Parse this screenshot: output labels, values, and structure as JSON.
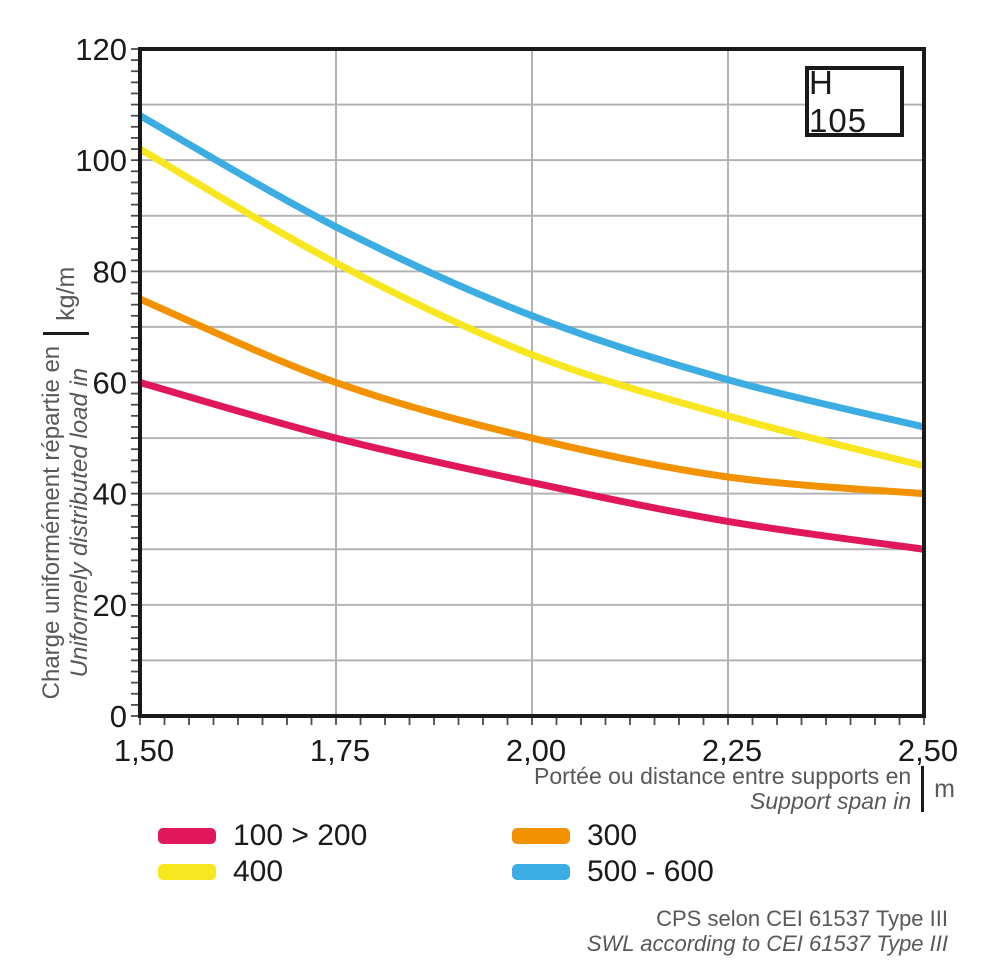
{
  "badge": {
    "label": "H 105"
  },
  "y_axis": {
    "title_fr": "Charge uniformément répartie en",
    "title_en": "Uniformely distributed load in",
    "unit": "kg/m",
    "tick_labels": [
      "0",
      "20",
      "40",
      "60",
      "80",
      "100",
      "120"
    ]
  },
  "x_axis": {
    "title_fr": "Portée ou distance entre supports en",
    "title_en": "Support span in",
    "unit": "m",
    "tick_labels": [
      "1,50",
      "1,75",
      "2,00",
      "2,25",
      "2,50"
    ]
  },
  "legend": [
    {
      "label": "100 > 200",
      "color": "#e1175b"
    },
    {
      "label": "300",
      "color": "#f39200"
    },
    {
      "label": "400",
      "color": "#f7e620"
    },
    {
      "label": "500 - 600",
      "color": "#3badе2"
    }
  ],
  "footer": {
    "line1": "CPS selon CEI 61537 Type III",
    "line2": "SWL according to CEI 61537 Type III"
  },
  "chart_data": {
    "type": "line",
    "title": "H 105",
    "xlabel": "Portée ou distance entre supports en / Support span in (m)",
    "ylabel": "Charge uniformément répartie en / Uniformely distributed load in (kg/m)",
    "x": [
      1.5,
      1.75,
      2.0,
      2.25,
      2.5
    ],
    "series": [
      {
        "name": "100 > 200",
        "color": "#e1175b",
        "values": [
          60,
          50,
          42,
          35,
          30
        ]
      },
      {
        "name": "300",
        "color": "#f39200",
        "values": [
          75,
          60,
          50,
          43,
          40
        ]
      },
      {
        "name": "400",
        "color": "#f7e620",
        "values": [
          102,
          81.5,
          65,
          54,
          45
        ]
      },
      {
        "name": "500-600",
        "color": "#3bade2",
        "values": [
          108,
          88,
          72,
          60.5,
          52
        ]
      }
    ],
    "xlim": [
      1.5,
      2.5
    ],
    "ylim": [
      0,
      120
    ],
    "x_major_step": 0.25,
    "y_major_step": 10,
    "x_minor_divisions_per_major": 8,
    "y_minor_step": 2,
    "grid": true,
    "legend_position": "bottom",
    "grid_color": "#b3b3b3",
    "axis_color": "#1a1a1a",
    "tick_color": "#4d4d4d",
    "tick_label_color": "#1a1a1a"
  }
}
